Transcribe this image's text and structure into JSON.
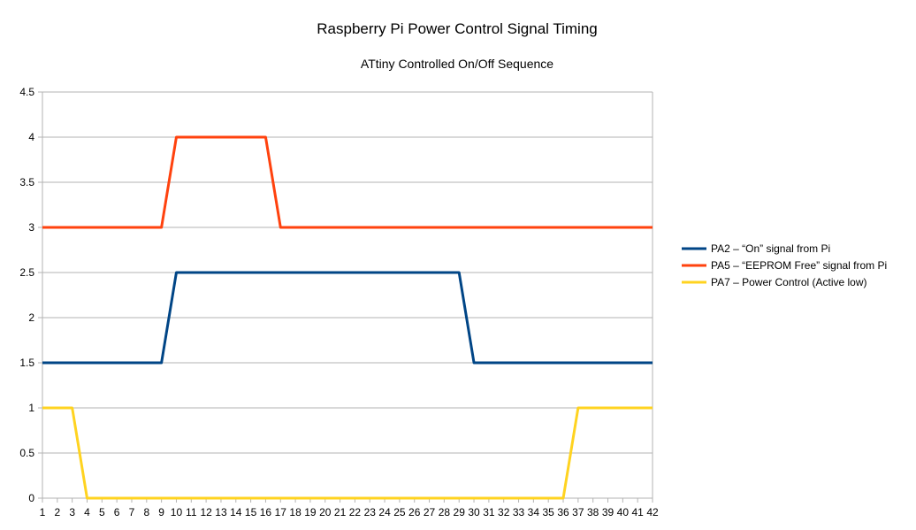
{
  "chart_data": {
    "type": "line",
    "title": "Raspberry Pi Power Control Signal Timing",
    "subtitle": "ATtiny Controlled On/Off Sequence",
    "xlabel": "",
    "ylabel": "",
    "categories": [
      1,
      2,
      3,
      4,
      5,
      6,
      7,
      8,
      9,
      10,
      11,
      12,
      13,
      14,
      15,
      16,
      17,
      18,
      19,
      20,
      21,
      22,
      23,
      24,
      25,
      26,
      27,
      28,
      29,
      30,
      31,
      32,
      33,
      34,
      35,
      36,
      37,
      38,
      39,
      40,
      41,
      42
    ],
    "ylim": [
      0,
      4.5
    ],
    "yticks": [
      0,
      0.5,
      1,
      1.5,
      2,
      2.5,
      3,
      3.5,
      4,
      4.5
    ],
    "grid": true,
    "legend_position": "right",
    "series": [
      {
        "name": "PA2 – “On” signal from Pi",
        "color": "#004586",
        "values": [
          1.5,
          1.5,
          1.5,
          1.5,
          1.5,
          1.5,
          1.5,
          1.5,
          1.5,
          2.5,
          2.5,
          2.5,
          2.5,
          2.5,
          2.5,
          2.5,
          2.5,
          2.5,
          2.5,
          2.5,
          2.5,
          2.5,
          2.5,
          2.5,
          2.5,
          2.5,
          2.5,
          2.5,
          2.5,
          1.5,
          1.5,
          1.5,
          1.5,
          1.5,
          1.5,
          1.5,
          1.5,
          1.5,
          1.5,
          1.5,
          1.5,
          1.5
        ]
      },
      {
        "name": "PA5 – “EEPROM Free” signal from Pi",
        "color": "#ff420e",
        "values": [
          3,
          3,
          3,
          3,
          3,
          3,
          3,
          3,
          3,
          4,
          4,
          4,
          4,
          4,
          4,
          4,
          3,
          3,
          3,
          3,
          3,
          3,
          3,
          3,
          3,
          3,
          3,
          3,
          3,
          3,
          3,
          3,
          3,
          3,
          3,
          3,
          3,
          3,
          3,
          3,
          3,
          3
        ]
      },
      {
        "name": "PA7 – Power Control (Active low)",
        "color": "#ffd320",
        "values": [
          1,
          1,
          1,
          0,
          0,
          0,
          0,
          0,
          0,
          0,
          0,
          0,
          0,
          0,
          0,
          0,
          0,
          0,
          0,
          0,
          0,
          0,
          0,
          0,
          0,
          0,
          0,
          0,
          0,
          0,
          0,
          0,
          0,
          0,
          0,
          0,
          1,
          1,
          1,
          1,
          1,
          1
        ]
      }
    ]
  }
}
